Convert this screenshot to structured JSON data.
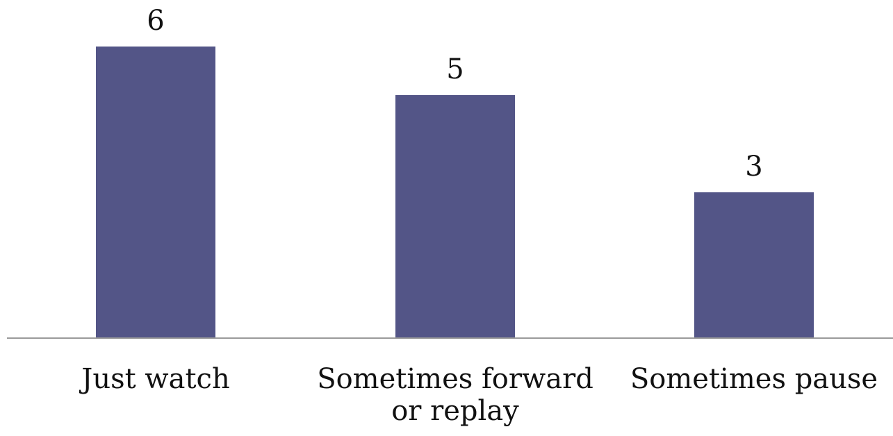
{
  "chart_data": {
    "type": "bar",
    "categories": [
      "Just watch",
      "Sometimes forward or replay",
      "Sometimes pause"
    ],
    "category_lines": [
      [
        "Just watch"
      ],
      [
        "Sometimes forward",
        "or replay"
      ],
      [
        "Sometimes pause"
      ]
    ],
    "values": [
      6,
      5,
      3
    ],
    "data_labels": [
      "6",
      "5",
      "3"
    ],
    "title": "",
    "xlabel": "",
    "ylabel": "",
    "ylim": [
      0,
      6
    ],
    "grid": false,
    "legend": "none",
    "colors": {
      "bar": "#535587",
      "axis": "#9a9a9a",
      "text": "#111111"
    }
  }
}
